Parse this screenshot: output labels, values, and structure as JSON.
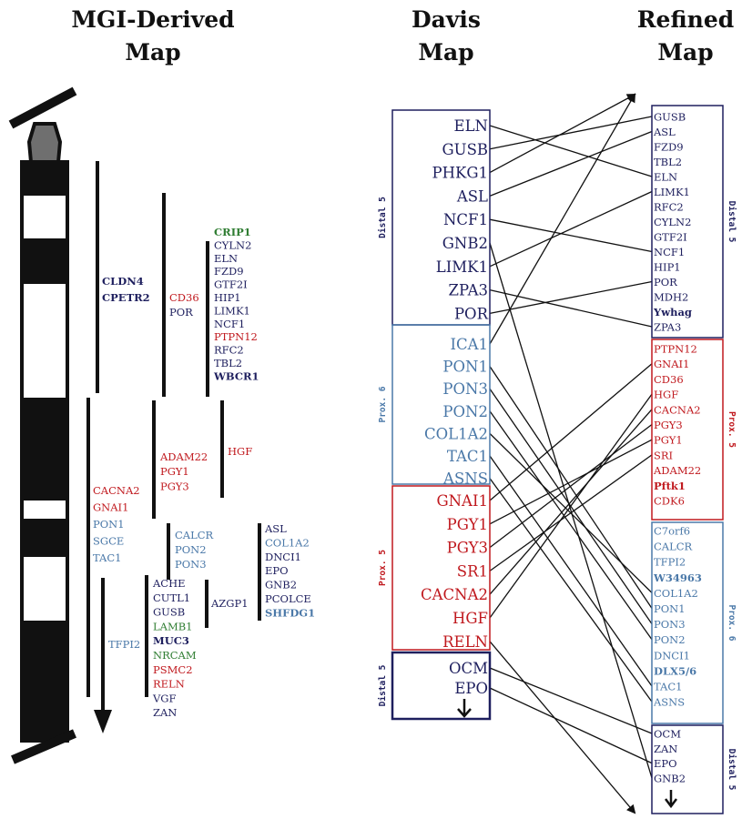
{
  "headings": {
    "mgi_line1": "MGI-Derived",
    "mgi_line2": "Map",
    "davis_line1": "Davis",
    "davis_line2": "Map",
    "refined_line1": "Refined",
    "refined_line2": "Map"
  },
  "colors": {
    "navy": "#1e1f5e",
    "blue": "#4a78a8",
    "red": "#c0191e",
    "green": "#2f7d32",
    "black": "#111111"
  },
  "mgi_groups": [
    {
      "genes": [
        {
          "text": "CLDN4",
          "color": "navy",
          "bold": true
        },
        {
          "text": "CPETR2",
          "color": "navy",
          "bold": true
        }
      ]
    },
    {
      "genes": [
        {
          "text": "CD36",
          "color": "red"
        },
        {
          "text": "POR",
          "color": "navy"
        }
      ]
    },
    {
      "genes": [
        {
          "text": "CRIP1",
          "color": "green",
          "bold": true
        },
        {
          "text": "CYLN2",
          "color": "navy"
        },
        {
          "text": "ELN",
          "color": "navy"
        },
        {
          "text": "FZD9",
          "color": "navy"
        },
        {
          "text": "GTF2I",
          "color": "navy"
        },
        {
          "text": "HIP1",
          "color": "navy"
        },
        {
          "text": "LIMK1",
          "color": "navy"
        },
        {
          "text": "NCF1",
          "color": "navy"
        },
        {
          "text": "PTPN12",
          "color": "red"
        },
        {
          "text": "RFC2",
          "color": "navy"
        },
        {
          "text": "TBL2",
          "color": "navy"
        },
        {
          "text": "WBCR1",
          "color": "navy",
          "bold": true
        }
      ]
    },
    {
      "genes": [
        {
          "text": "HGF",
          "color": "red"
        }
      ]
    },
    {
      "genes": [
        {
          "text": "ADAM22",
          "color": "red"
        },
        {
          "text": "PGY1",
          "color": "red"
        },
        {
          "text": "PGY3",
          "color": "red"
        }
      ]
    },
    {
      "genes": [
        {
          "text": "CACNA2",
          "color": "red"
        },
        {
          "text": "GNAI1",
          "color": "red"
        },
        {
          "text": "PON1",
          "color": "blue"
        },
        {
          "text": "SGCE",
          "color": "blue"
        },
        {
          "text": "TAC1",
          "color": "blue"
        }
      ]
    },
    {
      "genes": [
        {
          "text": "CALCR",
          "color": "blue"
        },
        {
          "text": "PON2",
          "color": "blue"
        },
        {
          "text": "PON3",
          "color": "blue"
        }
      ]
    },
    {
      "genes": [
        {
          "text": "ASL",
          "color": "navy"
        },
        {
          "text": "COL1A2",
          "color": "blue"
        },
        {
          "text": "DNCI1",
          "color": "navy"
        },
        {
          "text": "EPO",
          "color": "navy"
        },
        {
          "text": "GNB2",
          "color": "navy"
        },
        {
          "text": "PCOLCE",
          "color": "navy"
        },
        {
          "text": "SHFDG1",
          "color": "blue",
          "bold": true
        }
      ]
    },
    {
      "genes": [
        {
          "text": "AZGP1",
          "color": "navy"
        }
      ]
    },
    {
      "genes": [
        {
          "text": "ACHE",
          "color": "navy"
        },
        {
          "text": "CUTL1",
          "color": "navy"
        },
        {
          "text": "GUSB",
          "color": "navy"
        },
        {
          "text": "LAMB1",
          "color": "green"
        },
        {
          "text": "MUC3",
          "color": "navy",
          "bold": true
        },
        {
          "text": "NRCAM",
          "color": "green"
        },
        {
          "text": "PSMC2",
          "color": "red"
        },
        {
          "text": "RELN",
          "color": "red"
        },
        {
          "text": "VGF",
          "color": "navy"
        },
        {
          "text": "ZAN",
          "color": "navy"
        }
      ]
    },
    {
      "genes": [
        {
          "text": "TFPI2",
          "color": "blue"
        }
      ]
    }
  ],
  "davis_boxes": [
    {
      "label": "Distal 5",
      "color": "navy",
      "genes": [
        "ELN",
        "GUSB",
        "PHKG1",
        "ASL",
        "NCF1",
        "GNB2",
        "LIMK1",
        "ZPA3",
        "POR"
      ]
    },
    {
      "label": "Prox. 6",
      "color": "blue",
      "genes": [
        "ICA1",
        "PON1",
        "PON3",
        "PON2",
        "COL1A2",
        "TAC1",
        "ASNS"
      ]
    },
    {
      "label": "Prox. 5",
      "color": "red",
      "genes": [
        "GNAI1",
        "PGY1",
        "PGY3",
        "SR1",
        "CACNA2",
        "HGF",
        "RELN"
      ]
    },
    {
      "label": "Distal 5",
      "color": "navy",
      "genes": [
        "OCM",
        "EPO"
      ],
      "arrow": "down"
    }
  ],
  "refined_boxes": [
    {
      "label": "Distal 5",
      "color": "navy",
      "genes": [
        {
          "text": "GUSB"
        },
        {
          "text": "ASL"
        },
        {
          "text": "FZD9"
        },
        {
          "text": "TBL2"
        },
        {
          "text": "ELN"
        },
        {
          "text": "LIMK1"
        },
        {
          "text": "RFC2"
        },
        {
          "text": "CYLN2"
        },
        {
          "text": "GTF2I"
        },
        {
          "text": "NCF1"
        },
        {
          "text": "HIP1"
        },
        {
          "text": "POR"
        },
        {
          "text": "MDH2"
        },
        {
          "text": "Ywhag",
          "bold": true
        },
        {
          "text": "ZPA3"
        }
      ]
    },
    {
      "label": "Prox. 5",
      "color": "red",
      "genes": [
        {
          "text": "PTPN12"
        },
        {
          "text": "GNAI1"
        },
        {
          "text": "CD36"
        },
        {
          "text": "HGF"
        },
        {
          "text": "CACNA2"
        },
        {
          "text": "PGY3"
        },
        {
          "text": "PGY1"
        },
        {
          "text": "SRI"
        },
        {
          "text": "ADAM22"
        },
        {
          "text": "Pftk1",
          "bold": true
        },
        {
          "text": "CDK6"
        }
      ]
    },
    {
      "label": "Prox. 6",
      "color": "blue",
      "genes": [
        {
          "text": "C7orf6"
        },
        {
          "text": "CALCR"
        },
        {
          "text": "TFPI2"
        },
        {
          "text": "W34963",
          "bold": true
        },
        {
          "text": "COL1A2"
        },
        {
          "text": "PON1"
        },
        {
          "text": "PON3"
        },
        {
          "text": "PON2"
        },
        {
          "text": "DNCI1"
        },
        {
          "text": "DLX5/6",
          "bold": true
        },
        {
          "text": "TAC1"
        },
        {
          "text": "ASNS"
        }
      ]
    },
    {
      "label": "Distal 5",
      "color": "navy",
      "genes": [
        {
          "text": "OCM"
        },
        {
          "text": "ZAN"
        },
        {
          "text": "EPO"
        },
        {
          "text": "GNB2"
        }
      ],
      "arrow": "down"
    }
  ],
  "connections": [
    {
      "from": "ELN",
      "to": "ELN"
    },
    {
      "from": "GUSB",
      "to": "GUSB"
    },
    {
      "from": "PHKG1",
      "to": "top-arrow"
    },
    {
      "from": "ASL",
      "to": "ASL"
    },
    {
      "from": "NCF1",
      "to": "NCF1"
    },
    {
      "from": "GNB2",
      "to": "GNB2"
    },
    {
      "from": "LIMK1",
      "to": "LIMK1"
    },
    {
      "from": "ZPA3",
      "to": "ZPA3"
    },
    {
      "from": "POR",
      "to": "POR"
    },
    {
      "from": "ICA1",
      "to": "top-arrow"
    },
    {
      "from": "PON1",
      "to": "PON1"
    },
    {
      "from": "PON3",
      "to": "PON3"
    },
    {
      "from": "PON2",
      "to": "PON2"
    },
    {
      "from": "COL1A2",
      "to": "COL1A2"
    },
    {
      "from": "TAC1",
      "to": "TAC1"
    },
    {
      "from": "ASNS",
      "to": "ASNS"
    },
    {
      "from": "GNAI1",
      "to": "GNAI1"
    },
    {
      "from": "PGY1",
      "to": "PGY1"
    },
    {
      "from": "PGY3",
      "to": "PGY3"
    },
    {
      "from": "SR1",
      "to": "SRI"
    },
    {
      "from": "CACNA2",
      "to": "CACNA2"
    },
    {
      "from": "HGF",
      "to": "HGF"
    },
    {
      "from": "RELN",
      "to": "bottom-arrow"
    },
    {
      "from": "OCM",
      "to": "OCM"
    },
    {
      "from": "EPO",
      "to": "EPO"
    }
  ]
}
